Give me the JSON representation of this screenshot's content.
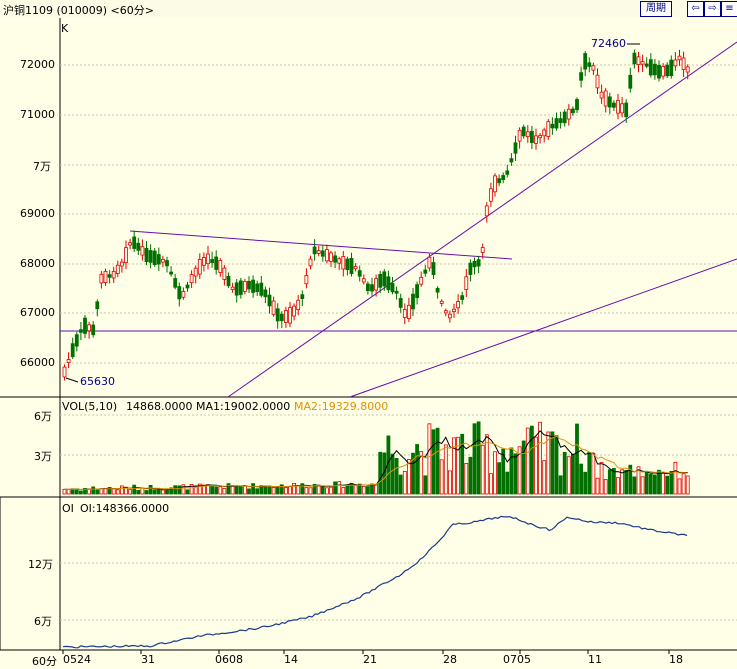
{
  "header": {
    "title": "沪铜1109 (010009) <60分>",
    "period_button": "周期",
    "nav_buttons": [
      "⇦",
      "⇨",
      "≡"
    ]
  },
  "price_panel": {
    "label": "K",
    "y_ticks": [
      "72000",
      "71000",
      "7万",
      "69000",
      "68000",
      "67000",
      "66000"
    ],
    "high_annotation": "72460",
    "low_annotation": "65630",
    "up_color": "#e00000",
    "down_color": "#007000",
    "trendline_color": "#6a0dad"
  },
  "volume_panel": {
    "label": "VOL(5,10)",
    "value": "14868.0000",
    "ma1_label": "MA1:19002.0000",
    "ma2_label": "MA2:19329.8000",
    "ma1_color": "#000000",
    "ma2_color": "#e09000",
    "y_ticks": [
      "6万",
      "3万"
    ]
  },
  "oi_panel": {
    "label": "OI",
    "value": "OI:148366.0000",
    "line_color": "#1a3a8a",
    "y_ticks": [
      "12万",
      "6万"
    ]
  },
  "x_axis": {
    "unit": "60分",
    "ticks": [
      "0524",
      "31",
      "0608",
      "14",
      "21",
      "28",
      "0705",
      "11",
      "18"
    ]
  }
}
